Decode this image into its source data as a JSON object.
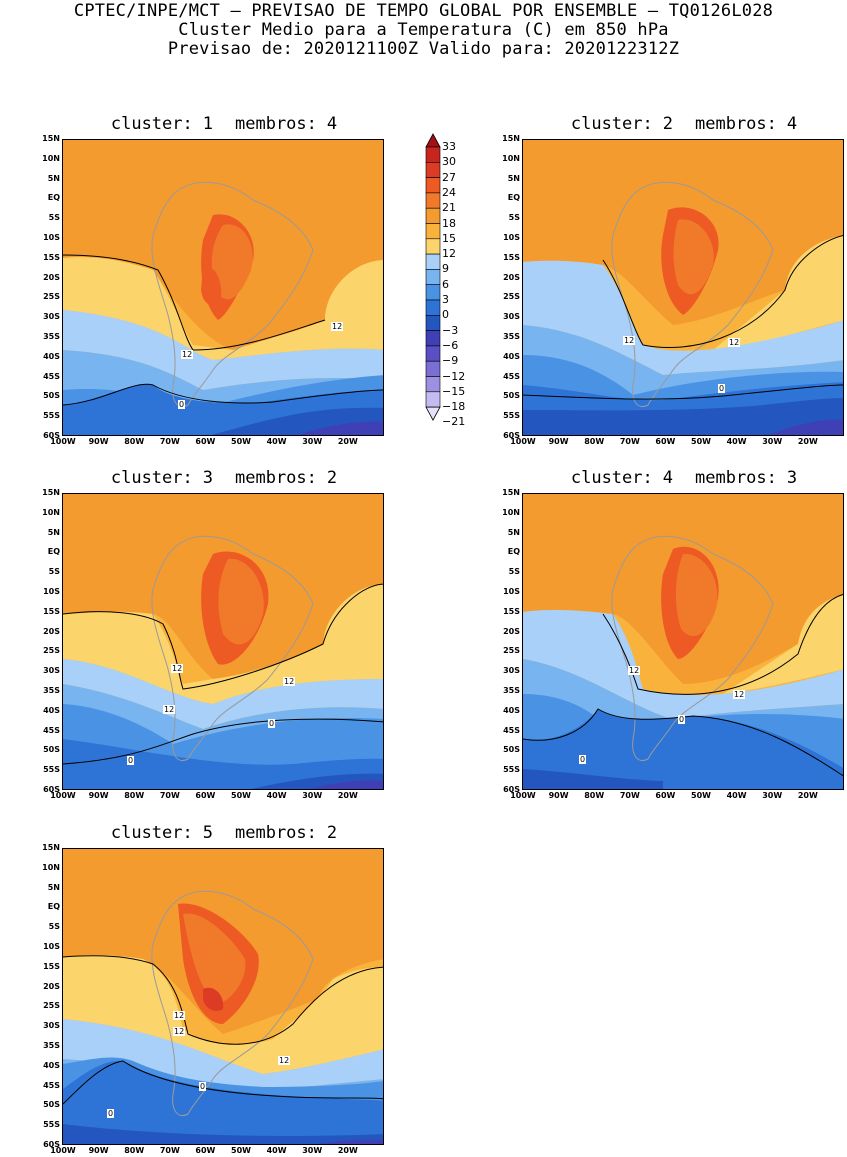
{
  "header": {
    "line1": "CPTEC/INPE/MCT – PREVISAO DE TEMPO GLOBAL POR ENSEMBLE – TQ0126L028",
    "line2": "Cluster Medio para a Temperatura (C) em 850 hPa",
    "line3": "Previsao de: 2020121100Z   Valido para: 2020122312Z"
  },
  "y_ticks": [
    "15N",
    "10N",
    "5N",
    "EQ",
    "5S",
    "10S",
    "15S",
    "20S",
    "25S",
    "30S",
    "35S",
    "40S",
    "45S",
    "50S",
    "55S",
    "60S"
  ],
  "x_ticks": [
    "100W",
    "90W",
    "80W",
    "70W",
    "60W",
    "50W",
    "40W",
    "30W",
    "20W"
  ],
  "legend": {
    "labels": [
      "33",
      "30",
      "27",
      "24",
      "21",
      "18",
      "15",
      "12",
      "9",
      "6",
      "3",
      "0",
      "−3",
      "−6",
      "−9",
      "−12",
      "−15",
      "−18",
      "−21"
    ],
    "colors": [
      "#a50f15",
      "#c8251f",
      "#dc3b26",
      "#ee5a24",
      "#f07a2a",
      "#f49b30",
      "#f9b33c",
      "#fcd46c",
      "#a8d0f8",
      "#78b4f0",
      "#4a93e4",
      "#2e74d6",
      "#2456c0",
      "#3f3fb6",
      "#5b4fc4",
      "#7b6fd4",
      "#9d90e2",
      "#c4bbf0",
      "#e6e0fa"
    ]
  },
  "panels": [
    {
      "title_cluster": "cluster:",
      "cluster_no": "1",
      "title_members": "membros:",
      "members_no": "4",
      "contour_labels": [
        "12",
        "12",
        "0"
      ]
    },
    {
      "title_cluster": "cluster:",
      "cluster_no": "2",
      "title_members": "membros:",
      "members_no": "4",
      "contour_labels": [
        "12",
        "12",
        "0"
      ]
    },
    {
      "title_cluster": "cluster:",
      "cluster_no": "3",
      "title_members": "membros:",
      "members_no": "2",
      "contour_labels": [
        "12",
        "12",
        "12",
        "0",
        "0"
      ]
    },
    {
      "title_cluster": "cluster:",
      "cluster_no": "4",
      "title_members": "membros:",
      "members_no": "3",
      "contour_labels": [
        "12",
        "12",
        "0",
        "0"
      ]
    },
    {
      "title_cluster": "cluster:",
      "cluster_no": "5",
      "title_members": "membros:",
      "members_no": "2",
      "contour_labels": [
        "12",
        "12",
        "12",
        "0",
        "0"
      ]
    }
  ]
}
